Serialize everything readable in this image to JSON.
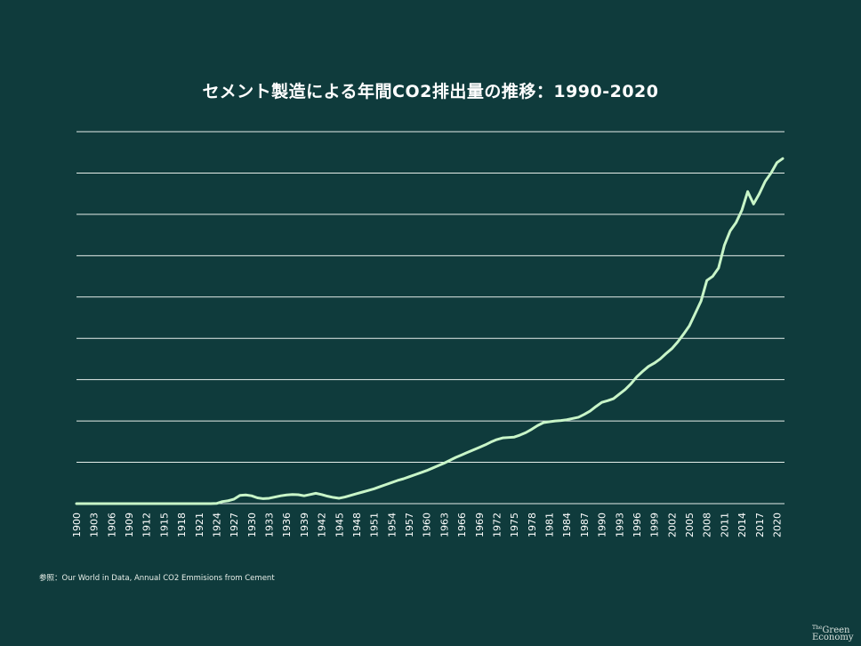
{
  "chart_data": {
    "type": "line",
    "title": "セメント製造による年間CO2排出量の推移：1990-2020",
    "xlabel": "",
    "ylabel": "",
    "ylim": [
      0,
      1800
    ],
    "grid": true,
    "line_color": "#c8f5c8",
    "x_tick_labels": [
      "1900",
      "1903",
      "1906",
      "1909",
      "1912",
      "1915",
      "1918",
      "1921",
      "1924",
      "1927",
      "1930",
      "1933",
      "1936",
      "1939",
      "1942",
      "1945",
      "1948",
      "1951",
      "1954",
      "1957",
      "1960",
      "1963",
      "1966",
      "1969",
      "1972",
      "1975",
      "1978",
      "1981",
      "1984",
      "1987",
      "1990",
      "1993",
      "1996",
      "1999",
      "2002",
      "2005",
      "2008",
      "2011",
      "2014",
      "2017",
      "2020"
    ],
    "x": [
      1900,
      1901,
      1902,
      1903,
      1904,
      1905,
      1906,
      1907,
      1908,
      1909,
      1910,
      1911,
      1912,
      1913,
      1914,
      1915,
      1916,
      1917,
      1918,
      1919,
      1920,
      1921,
      1922,
      1923,
      1924,
      1925,
      1926,
      1927,
      1928,
      1929,
      1930,
      1931,
      1932,
      1933,
      1934,
      1935,
      1936,
      1937,
      1938,
      1939,
      1940,
      1941,
      1942,
      1943,
      1944,
      1945,
      1946,
      1947,
      1948,
      1949,
      1950,
      1951,
      1952,
      1953,
      1954,
      1955,
      1956,
      1957,
      1958,
      1959,
      1960,
      1961,
      1962,
      1963,
      1964,
      1965,
      1966,
      1967,
      1968,
      1969,
      1970,
      1971,
      1972,
      1973,
      1974,
      1975,
      1976,
      1977,
      1978,
      1979,
      1980,
      1981,
      1982,
      1983,
      1984,
      1985,
      1986,
      1987,
      1988,
      1989,
      1990,
      1991,
      1992,
      1993,
      1994,
      1995,
      1996,
      1997,
      1998,
      1999,
      2000,
      2001,
      2002,
      2003,
      2004,
      2005,
      2006,
      2007,
      2008,
      2009,
      2010,
      2011,
      2012,
      2013,
      2014,
      2015,
      2016,
      2017,
      2018,
      2019,
      2020,
      2021
    ],
    "values": [
      0,
      0,
      0,
      0,
      0,
      0,
      0,
      0,
      0,
      0,
      0,
      0,
      0,
      0,
      0,
      0,
      0,
      0,
      0,
      0,
      0,
      0,
      0,
      0,
      1,
      10,
      14,
      22,
      40,
      42,
      38,
      28,
      24,
      26,
      32,
      38,
      42,
      44,
      43,
      38,
      44,
      50,
      44,
      36,
      30,
      26,
      32,
      40,
      48,
      56,
      64,
      72,
      82,
      92,
      102,
      112,
      120,
      130,
      140,
      150,
      160,
      172,
      184,
      196,
      210,
      224,
      236,
      248,
      260,
      272,
      284,
      298,
      310,
      318,
      320,
      322,
      332,
      344,
      360,
      378,
      392,
      396,
      400,
      402,
      406,
      412,
      418,
      432,
      448,
      470,
      490,
      498,
      508,
      530,
      552,
      580,
      614,
      640,
      664,
      680,
      700,
      726,
      750,
      782,
      820,
      860,
      920,
      980,
      1080,
      1100,
      1140,
      1250,
      1320,
      1360,
      1420,
      1510,
      1450,
      1500,
      1560,
      1600,
      1650,
      1670
    ]
  },
  "source_text": "参照：Our World in Data, Annual CO2 Emmisions from Cement",
  "logo": {
    "the": "The",
    "green": "Green",
    "economy": "Economy"
  }
}
